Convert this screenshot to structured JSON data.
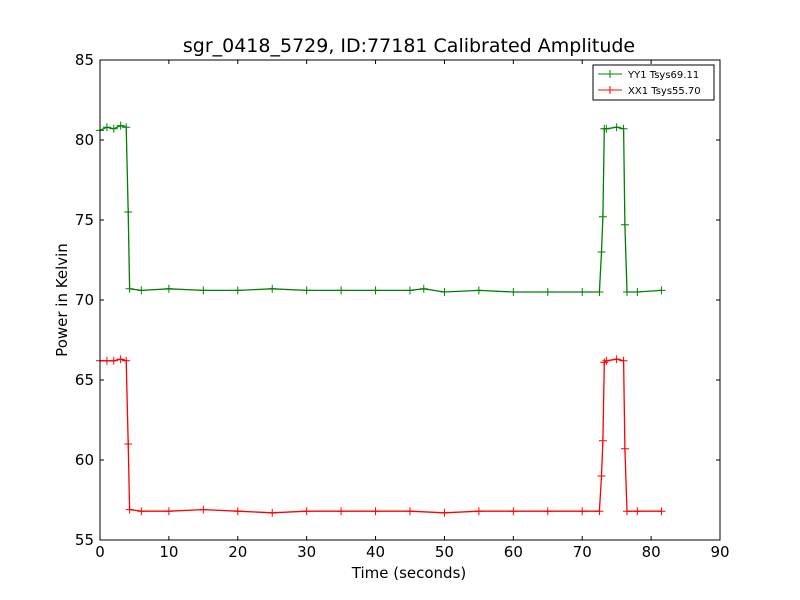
{
  "chart_data": {
    "type": "line",
    "title": "sgr_0418_5729, ID:77181 Calibrated Amplitude",
    "xlabel": "Time (seconds)",
    "ylabel": "Power in Kelvin",
    "xlim": [
      0,
      90
    ],
    "ylim": [
      55,
      85
    ],
    "xticks": [
      "0",
      "10",
      "20",
      "30",
      "40",
      "50",
      "60",
      "70",
      "80",
      "90"
    ],
    "yticks": [
      "55",
      "60",
      "65",
      "70",
      "75",
      "80",
      "85"
    ],
    "grid": false,
    "legend_position": "top-right",
    "series": [
      {
        "name": "YY1 Tsys69.11",
        "color": "#008000",
        "marker": "+",
        "x": [
          0,
          1,
          2,
          3,
          3.8,
          4.1,
          4.3,
          6,
          10,
          15,
          20,
          25,
          30,
          35,
          40,
          45,
          47,
          50,
          55,
          60,
          65,
          70,
          72.5,
          72.8,
          73.0,
          73.2,
          73.5,
          75,
          76.0,
          76.2,
          76.5,
          78,
          81.5
        ],
        "y": [
          80.6,
          80.8,
          80.7,
          80.9,
          80.8,
          75.5,
          70.7,
          70.6,
          70.7,
          70.6,
          70.6,
          70.7,
          70.6,
          70.6,
          70.6,
          70.6,
          70.7,
          70.5,
          70.6,
          70.5,
          70.5,
          70.5,
          70.5,
          73.0,
          75.2,
          80.7,
          80.7,
          80.8,
          80.7,
          74.7,
          70.5,
          70.5,
          70.6
        ]
      },
      {
        "name": "XX1 Tsys55.70",
        "color": "#ff0000",
        "marker": "+",
        "x": [
          0,
          1,
          2,
          3,
          3.8,
          4.1,
          4.3,
          6,
          10,
          15,
          20,
          25,
          30,
          35,
          40,
          45,
          50,
          55,
          60,
          65,
          70,
          72.5,
          72.8,
          73.0,
          73.2,
          73.5,
          75,
          76.0,
          76.2,
          76.5,
          78,
          81.5
        ],
        "y": [
          66.2,
          66.2,
          66.2,
          66.3,
          66.2,
          61.0,
          56.9,
          56.8,
          56.8,
          56.9,
          56.8,
          56.7,
          56.8,
          56.8,
          56.8,
          56.8,
          56.7,
          56.8,
          56.8,
          56.8,
          56.8,
          56.8,
          59.0,
          61.2,
          66.1,
          66.2,
          66.3,
          66.2,
          60.7,
          56.8,
          56.8,
          56.8
        ]
      }
    ]
  }
}
